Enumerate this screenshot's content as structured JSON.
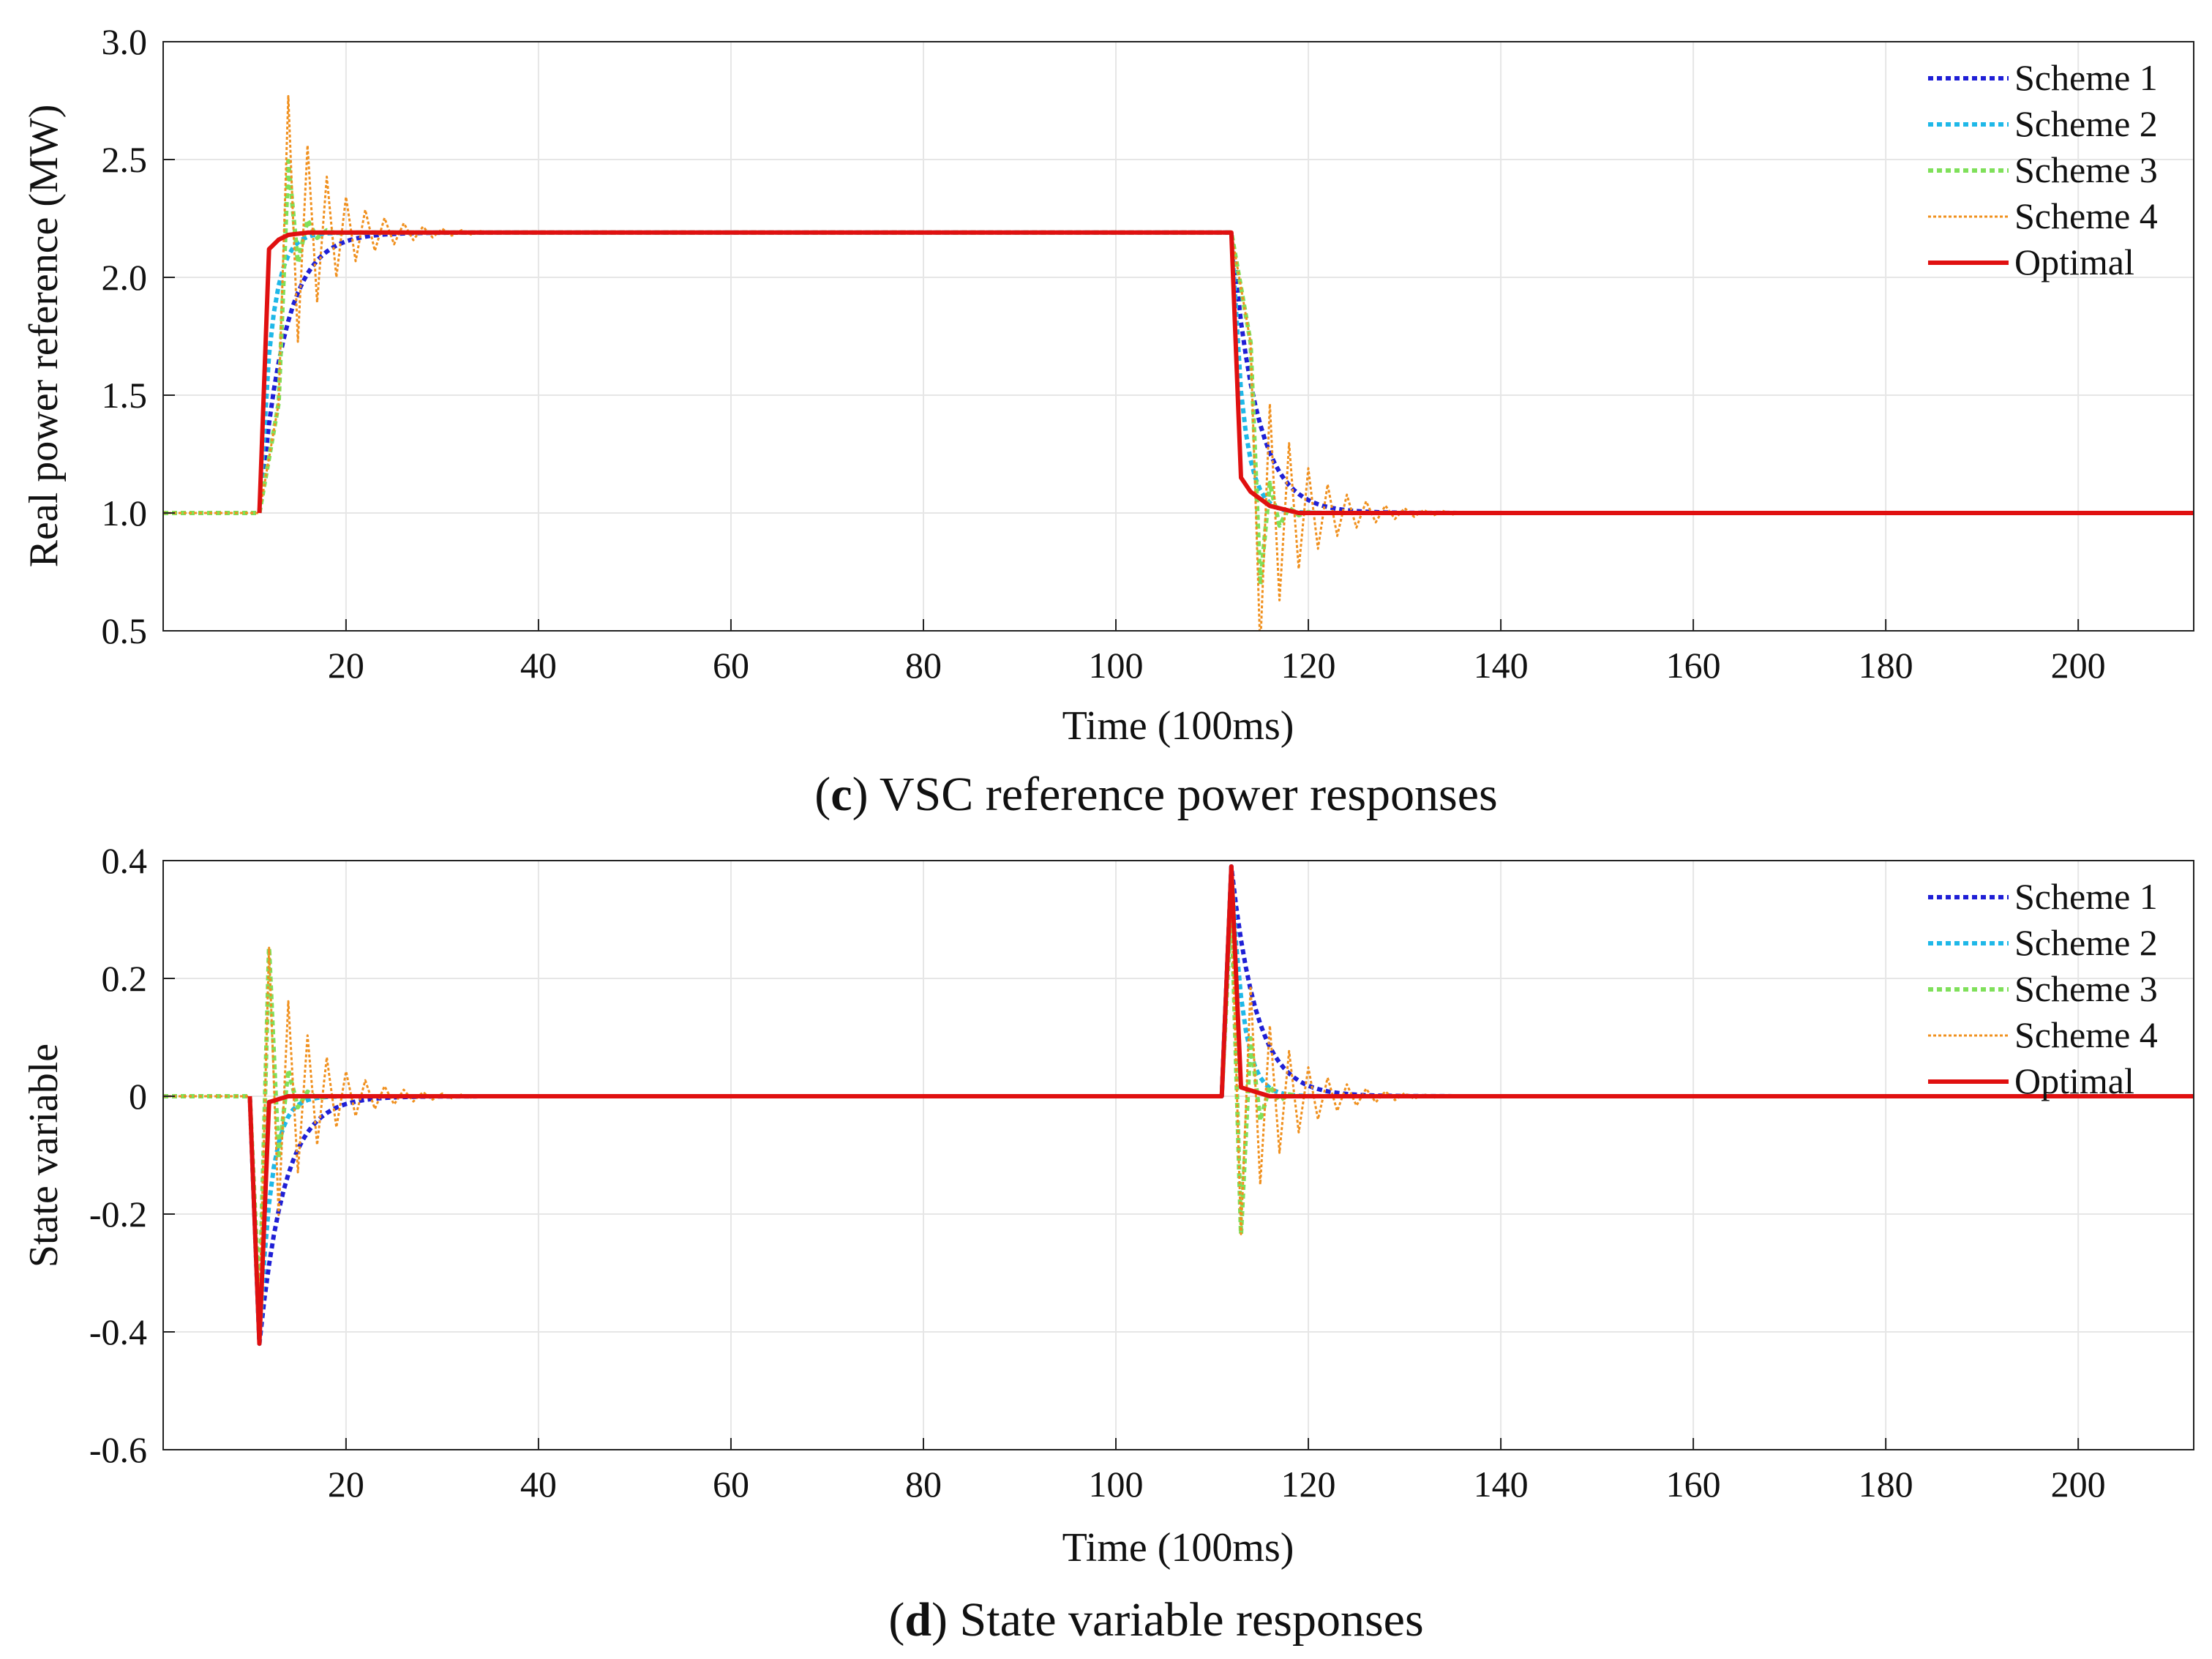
{
  "figure": {
    "panels": [
      {
        "label": "c",
        "caption": "VSC reference power responses"
      },
      {
        "label": "d",
        "caption": "State variable responses"
      }
    ]
  },
  "chart_data": [
    {
      "type": "line",
      "panel": "c",
      "xlabel": "Time (100ms)",
      "ylabel": "Real power reference (MW)",
      "xlim": [
        1,
        212
      ],
      "ylim": [
        0.5,
        3.0
      ],
      "xticks": [
        20,
        40,
        60,
        80,
        100,
        120,
        140,
        160,
        180,
        200
      ],
      "yticks": [
        0.5,
        1.0,
        1.5,
        2.0,
        2.5,
        3.0
      ],
      "ytick_labels": [
        "0.5",
        "1.0",
        "1.5",
        "2.0",
        "2.5",
        "3.0"
      ],
      "grid": true,
      "legend_position": "top-right",
      "series": [
        {
          "name": "Scheme 1",
          "color": "#1f1fd6",
          "style": "dotted",
          "model": "exp",
          "tau": 2.6
        },
        {
          "name": "Scheme 2",
          "color": "#1fb8e8",
          "style": "dotted",
          "model": "exp",
          "tau": 1.2
        },
        {
          "name": "Scheme 3",
          "color": "#7fe05a",
          "style": "dotted",
          "model": "alt",
          "r": 0.42
        },
        {
          "name": "Scheme 4",
          "color": "#f0901e",
          "style": "dotted-thin",
          "model": "alt",
          "r": 0.8
        },
        {
          "name": "Optimal",
          "color": "#e01010",
          "style": "solid",
          "model": "opt"
        }
      ],
      "events": [
        {
          "t": 11,
          "t_end": 12,
          "from": 1.0,
          "to": 2.19,
          "scale": 1.19
        },
        {
          "t": 112,
          "t_end": 113,
          "from": 2.19,
          "to": 1.0,
          "scale": 1.19
        }
      ],
      "optimal_profile": [
        [
          11,
          1.0
        ],
        [
          12,
          2.12
        ],
        [
          13,
          2.16
        ],
        [
          14,
          2.18
        ],
        [
          16,
          2.19
        ],
        [
          112,
          2.19
        ],
        [
          113,
          1.15
        ],
        [
          114,
          1.09
        ],
        [
          116,
          1.03
        ],
        [
          119,
          1.0
        ],
        [
          212,
          1.0
        ]
      ]
    },
    {
      "type": "line",
      "panel": "d",
      "xlabel": "Time (100ms)",
      "ylabel": "State variable",
      "xlim": [
        1,
        212
      ],
      "ylim": [
        -0.6,
        0.4
      ],
      "xticks": [
        20,
        40,
        60,
        80,
        100,
        120,
        140,
        160,
        180,
        200
      ],
      "yticks": [
        -0.6,
        -0.4,
        -0.2,
        0,
        0.2,
        0.4
      ],
      "ytick_labels": [
        "-0.6",
        "-0.4",
        "-0.2",
        "0",
        "0.2",
        "0.4"
      ],
      "grid": true,
      "legend_position": "top-right",
      "series": [
        {
          "name": "Scheme 1",
          "color": "#1f1fd6",
          "style": "dotted",
          "model": "exp",
          "tau": 2.6
        },
        {
          "name": "Scheme 2",
          "color": "#1fb8e8",
          "style": "dotted",
          "model": "exp",
          "tau": 1.2
        },
        {
          "name": "Scheme 3",
          "color": "#7fe05a",
          "style": "dotted",
          "model": "alt",
          "r": 0.42
        },
        {
          "name": "Scheme 4",
          "color": "#f0901e",
          "style": "dotted-thin",
          "model": "alt",
          "r": 0.8
        },
        {
          "name": "Optimal",
          "color": "#e01010",
          "style": "solid",
          "model": "opt"
        }
      ],
      "events": [
        {
          "t": 10,
          "t_end": 11,
          "from": 0.0,
          "to": 0.0,
          "peak": -0.42
        },
        {
          "t": 111,
          "t_end": 112,
          "from": 0.0,
          "to": 0.0,
          "peak": 0.39
        }
      ],
      "optimal_profile": [
        [
          10,
          0.0
        ],
        [
          11,
          -0.42
        ],
        [
          12,
          -0.01
        ],
        [
          13,
          -0.005
        ],
        [
          14,
          0.0
        ],
        [
          111,
          0.0
        ],
        [
          112,
          0.39
        ],
        [
          113,
          0.015
        ],
        [
          114,
          0.01
        ],
        [
          116,
          0.0
        ],
        [
          212,
          0.0
        ]
      ]
    }
  ]
}
